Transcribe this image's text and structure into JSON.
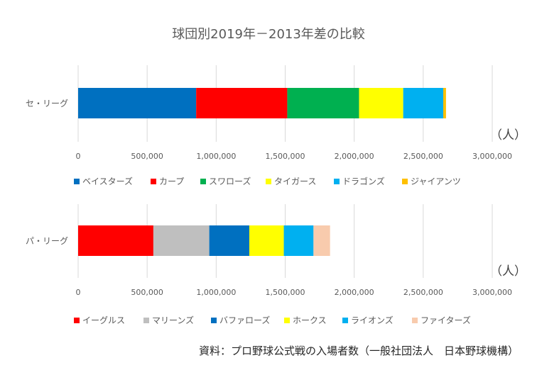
{
  "title": "球団別2019年－2013年差の比較",
  "source": "資料：プロ野球公式戦の入場者数（一般社団法人　日本野球機構）",
  "chart_data": [
    {
      "type": "bar",
      "orientation": "horizontal",
      "stacked": true,
      "categories": [
        "セ・リーグ"
      ],
      "unit_label": "（人）",
      "xlim": [
        0,
        3000000
      ],
      "ticks": [
        "0",
        "500,000",
        "1,000,000",
        "1,500,000",
        "2,000,000",
        "2,500,000",
        "3,000,000"
      ],
      "grid": true,
      "legend_position": "bottom",
      "series": [
        {
          "name": "ベイスターズ",
          "values": [
            855000
          ],
          "color": "#0070C0"
        },
        {
          "name": "カープ",
          "values": [
            660000
          ],
          "color": "#FF0000"
        },
        {
          "name": "スワローズ",
          "values": [
            520000
          ],
          "color": "#00B050"
        },
        {
          "name": "タイガース",
          "values": [
            320000
          ],
          "color": "#FFFF00"
        },
        {
          "name": "ドラゴンズ",
          "values": [
            290000
          ],
          "color": "#00B0F0"
        },
        {
          "name": "ジャイアンツ",
          "values": [
            20000
          ],
          "color": "#FFC000"
        }
      ]
    },
    {
      "type": "bar",
      "orientation": "horizontal",
      "stacked": true,
      "categories": [
        "パ・リーグ"
      ],
      "unit_label": "（人）",
      "xlim": [
        0,
        3000000
      ],
      "ticks": [
        "0",
        "500,000",
        "1,000,000",
        "1,500,000",
        "2,000,000",
        "2,500,000",
        "3,000,000"
      ],
      "grid": true,
      "legend_position": "bottom",
      "series": [
        {
          "name": "イーグルス",
          "values": [
            545000
          ],
          "color": "#FF0000"
        },
        {
          "name": "マリーンズ",
          "values": [
            405000
          ],
          "color": "#BFBFBF"
        },
        {
          "name": "バファローズ",
          "values": [
            290000
          ],
          "color": "#0070C0"
        },
        {
          "name": "ホークス",
          "values": [
            250000
          ],
          "color": "#FFFF00"
        },
        {
          "name": "ライオンズ",
          "values": [
            215000
          ],
          "color": "#00B0F0"
        },
        {
          "name": "ファイターズ",
          "values": [
            120000
          ],
          "color": "#F8CBAD"
        }
      ]
    }
  ]
}
